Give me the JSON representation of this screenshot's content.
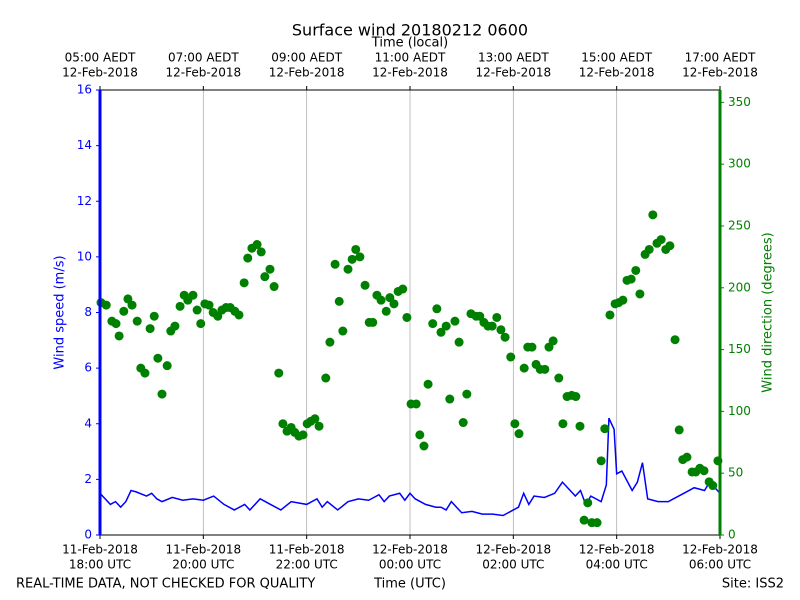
{
  "chart_data": {
    "type": "line",
    "title": "Surface wind 20180212 0600",
    "x2label": "Time (local)",
    "xlabel": "Time (UTC)",
    "ylabel": "Wind speed (m/s)",
    "y2label": "Wind direction (degrees)",
    "footer_left": "REAL-TIME DATA, NOT CHECKED FOR QUALITY",
    "footer_right": "Site: ISS2",
    "grid": "x",
    "xlim": [
      0,
      12
    ],
    "ylim": [
      0,
      16
    ],
    "y2lim": [
      0,
      360
    ],
    "xticks": [
      {
        "value": 0,
        "label": [
          "11-Feb-2018",
          "18:00 UTC"
        ]
      },
      {
        "value": 2,
        "label": [
          "11-Feb-2018",
          "20:00 UTC"
        ]
      },
      {
        "value": 4,
        "label": [
          "11-Feb-2018",
          "22:00 UTC"
        ]
      },
      {
        "value": 6,
        "label": [
          "12-Feb-2018",
          "00:00 UTC"
        ]
      },
      {
        "value": 8,
        "label": [
          "12-Feb-2018",
          "02:00 UTC"
        ]
      },
      {
        "value": 10,
        "label": [
          "12-Feb-2018",
          "04:00 UTC"
        ]
      },
      {
        "value": 12,
        "label": [
          "12-Feb-2018",
          "06:00 UTC"
        ]
      }
    ],
    "x2ticks": [
      {
        "value": 0,
        "label": [
          "05:00 AEDT",
          "12-Feb-2018"
        ]
      },
      {
        "value": 2,
        "label": [
          "07:00 AEDT",
          "12-Feb-2018"
        ]
      },
      {
        "value": 4,
        "label": [
          "09:00 AEDT",
          "12-Feb-2018"
        ]
      },
      {
        "value": 6,
        "label": [
          "11:00 AEDT",
          "12-Feb-2018"
        ]
      },
      {
        "value": 8,
        "label": [
          "13:00 AEDT",
          "12-Feb-2018"
        ]
      },
      {
        "value": 10,
        "label": [
          "15:00 AEDT",
          "12-Feb-2018"
        ]
      },
      {
        "value": 12,
        "label": [
          "17:00 AEDT",
          "12-Feb-2018"
        ]
      }
    ],
    "yticks": [
      0,
      2,
      4,
      6,
      8,
      10,
      12,
      14,
      16
    ],
    "y2ticks": [
      0,
      50,
      100,
      150,
      200,
      250,
      300,
      350
    ],
    "series": [
      {
        "type": "line",
        "axis": "y",
        "color": "#0000ff",
        "x": [
          0,
          0.2,
          0.3,
          0.4,
          0.5,
          0.6,
          0.7,
          0.9,
          1.0,
          1.1,
          1.2,
          1.4,
          1.6,
          1.8,
          2.0,
          2.2,
          2.4,
          2.6,
          2.8,
          2.9,
          3.1,
          3.3,
          3.5,
          3.7,
          4.0,
          4.2,
          4.3,
          4.4,
          4.6,
          4.8,
          5.0,
          5.2,
          5.4,
          5.5,
          5.6,
          5.8,
          5.9,
          6.0,
          6.1,
          6.3,
          6.5,
          6.6,
          6.7,
          6.8,
          7.0,
          7.2,
          7.4,
          7.6,
          7.8,
          8.0,
          8.1,
          8.2,
          8.3,
          8.4,
          8.6,
          8.8,
          8.95,
          9.2,
          9.3,
          9.4,
          9.5,
          9.7,
          9.8,
          9.85,
          9.95,
          10.0,
          10.1,
          10.3,
          10.4,
          10.5,
          10.6,
          10.8,
          11.0,
          11.1,
          11.3,
          11.5,
          11.7,
          11.8,
          12.0
        ],
        "values": [
          1.5,
          1.1,
          1.2,
          1.0,
          1.2,
          1.6,
          1.55,
          1.4,
          1.5,
          1.3,
          1.2,
          1.35,
          1.25,
          1.3,
          1.25,
          1.4,
          1.1,
          0.9,
          1.1,
          0.9,
          1.3,
          1.1,
          0.9,
          1.2,
          1.1,
          1.3,
          1.0,
          1.2,
          0.9,
          1.2,
          1.3,
          1.25,
          1.45,
          1.2,
          1.4,
          1.5,
          1.25,
          1.5,
          1.3,
          1.1,
          1.0,
          1.0,
          0.9,
          1.2,
          0.8,
          0.85,
          0.75,
          0.75,
          0.7,
          0.9,
          1.0,
          1.5,
          1.1,
          1.4,
          1.35,
          1.5,
          1.9,
          1.4,
          1.6,
          1.1,
          1.4,
          1.2,
          1.8,
          4.2,
          3.8,
          2.2,
          2.3,
          1.6,
          1.9,
          2.6,
          1.3,
          1.2,
          1.2,
          1.3,
          1.5,
          1.7,
          1.6,
          1.9,
          1.5
        ]
      },
      {
        "type": "scatter",
        "axis": "y2",
        "color": "#008000",
        "x": [
          0.02,
          0.12,
          0.23,
          0.31,
          0.37,
          0.46,
          0.54,
          0.62,
          0.72,
          0.79,
          0.87,
          0.97,
          1.05,
          1.12,
          1.2,
          1.3,
          1.37,
          1.45,
          1.55,
          1.63,
          1.7,
          1.8,
          1.88,
          1.95,
          2.03,
          2.11,
          2.19,
          2.28,
          2.36,
          2.44,
          2.52,
          2.61,
          2.69,
          2.79,
          2.86,
          2.94,
          3.04,
          3.12,
          3.19,
          3.29,
          3.37,
          3.46,
          3.54,
          3.62,
          3.7,
          3.77,
          3.85,
          3.93,
          4.01,
          4.08,
          4.16,
          4.24,
          4.37,
          4.45,
          4.55,
          4.63,
          4.7,
          4.8,
          4.88,
          4.95,
          5.03,
          5.13,
          5.21,
          5.28,
          5.36,
          5.44,
          5.54,
          5.61,
          5.69,
          5.77,
          5.86,
          5.94,
          6.02,
          6.12,
          6.19,
          6.27,
          6.35,
          6.44,
          6.52,
          6.6,
          6.7,
          6.77,
          6.87,
          6.95,
          7.03,
          7.1,
          7.18,
          7.28,
          7.35,
          7.43,
          7.51,
          7.59,
          7.68,
          7.76,
          7.84,
          7.95,
          8.03,
          8.11,
          8.21,
          8.28,
          8.36,
          8.44,
          8.52,
          8.61,
          8.69,
          8.77,
          8.88,
          8.96,
          9.04,
          9.13,
          9.21,
          9.29,
          9.37,
          9.44,
          9.52,
          9.62,
          9.7,
          9.77,
          9.87,
          9.97,
          10.04,
          10.12,
          10.2,
          10.28,
          10.37,
          10.45,
          10.55,
          10.63,
          10.7,
          10.78,
          10.86,
          10.95,
          11.03,
          11.13,
          11.21,
          11.28,
          11.36,
          11.46,
          11.53,
          11.61,
          11.69,
          11.79,
          11.86,
          11.96
        ],
        "values": [
          188,
          186,
          173,
          171,
          161,
          181,
          191,
          186,
          173,
          135,
          131,
          167,
          177,
          143,
          114,
          137,
          165,
          169,
          185,
          194,
          190,
          194,
          182,
          171,
          187,
          186,
          180,
          177,
          182,
          184,
          184,
          181,
          178,
          204,
          224,
          232,
          235,
          229,
          209,
          215,
          201,
          131,
          90,
          84,
          87,
          83,
          80,
          81,
          90,
          92,
          94,
          88,
          127,
          156,
          219,
          189,
          165,
          215,
          223,
          231,
          225,
          202,
          172,
          172,
          194,
          190,
          181,
          192,
          187,
          197,
          199,
          176,
          106,
          106,
          81,
          72,
          122,
          171,
          183,
          164,
          169,
          110,
          173,
          156,
          91,
          114,
          179,
          177,
          177,
          172,
          169,
          169,
          176,
          166,
          160,
          144,
          90,
          82,
          135,
          152,
          152,
          138,
          134,
          134,
          152,
          157,
          127,
          90,
          112,
          113,
          112,
          88,
          12,
          26,
          10,
          10,
          60,
          86,
          178,
          187,
          188,
          190,
          206,
          207,
          214,
          195,
          227,
          231,
          259,
          236,
          239,
          231,
          234,
          158,
          85,
          61,
          63,
          51,
          51,
          54,
          52,
          43,
          40,
          60
        ]
      }
    ]
  }
}
